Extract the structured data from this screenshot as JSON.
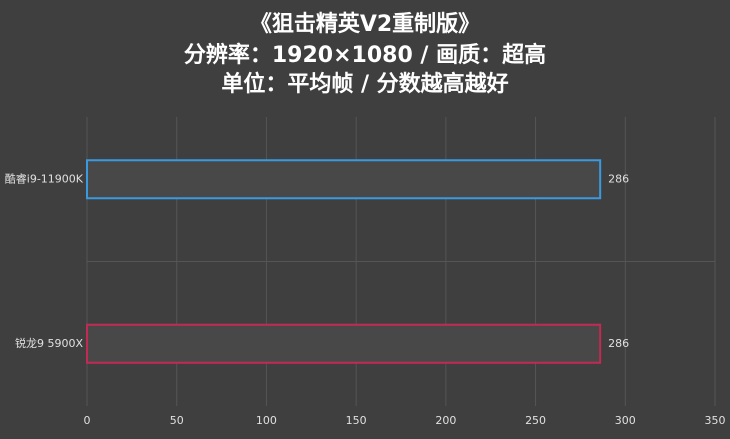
{
  "chart_data": {
    "type": "hbar",
    "title": [
      "《狙击精英V2重制版》",
      "分辨率：1920×1080 / 画质：超高",
      "单位：平均帧 / 分数越高越好"
    ],
    "categories": [
      "酷睿i9-11900K",
      "锐龙9 5900X"
    ],
    "values": [
      286,
      286
    ],
    "colors": [
      "#3a9ae0",
      "#c22a55"
    ],
    "xlim": [
      0,
      350
    ],
    "xticks": [
      0,
      50,
      100,
      150,
      200,
      250,
      300,
      350
    ],
    "grid": true
  }
}
